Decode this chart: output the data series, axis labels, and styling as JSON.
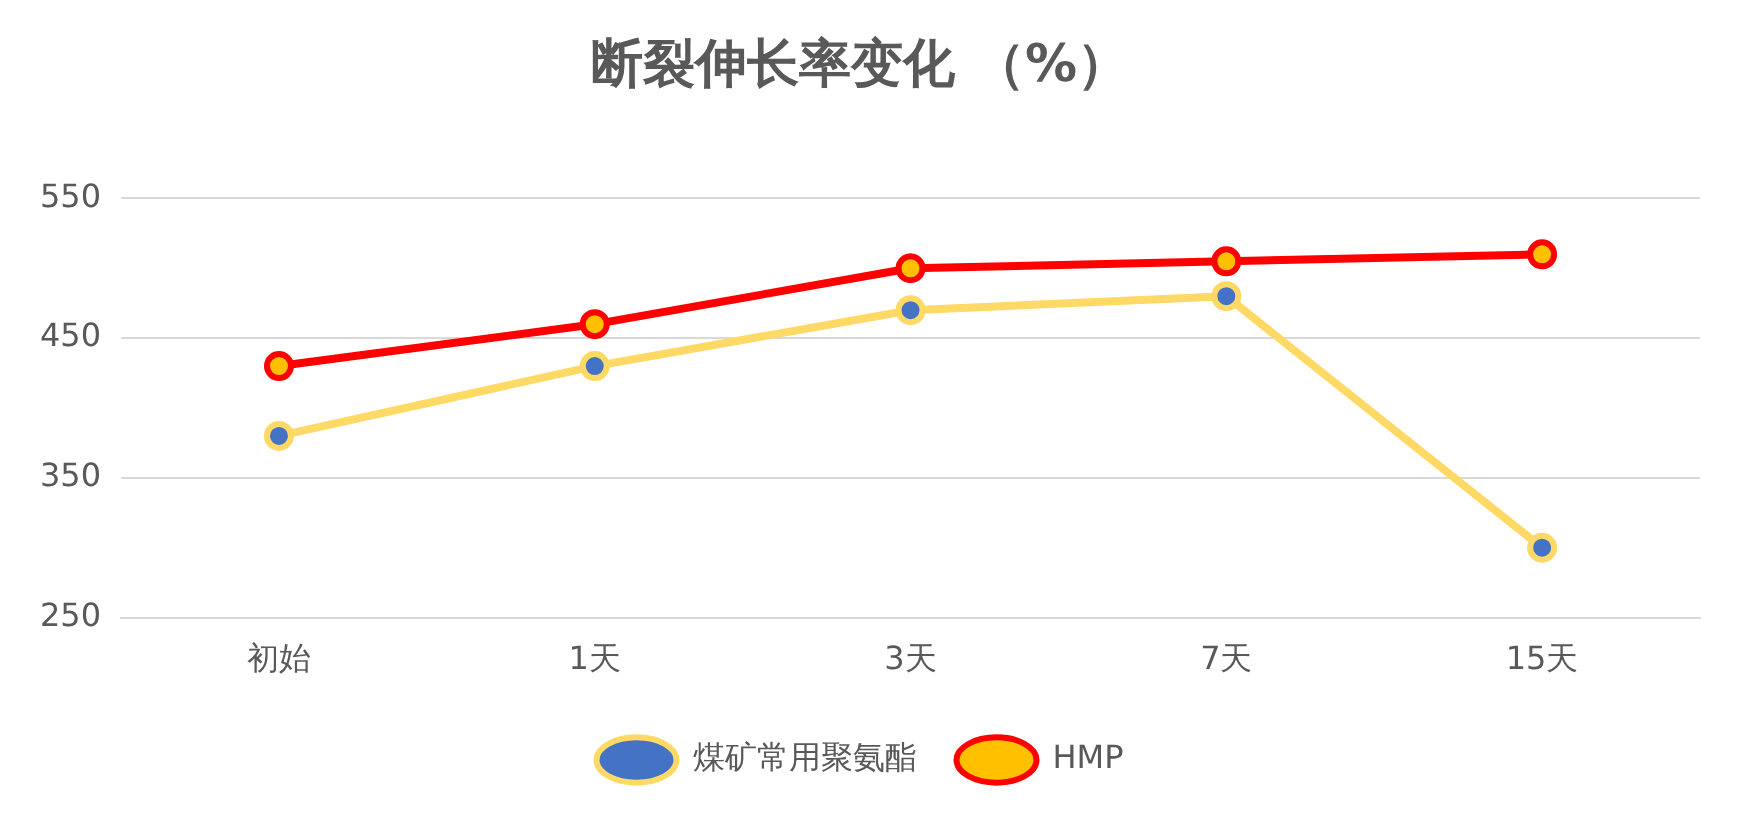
{
  "chart_data": {
    "type": "line",
    "title": "断裂伸长率变化 （%）",
    "categories": [
      "初始",
      "1天",
      "3天",
      "7天",
      "15天"
    ],
    "series": [
      {
        "name": "煤矿常用聚氨酯",
        "color": "#ffd966",
        "values": [
          380,
          430,
          470,
          480,
          300
        ]
      },
      {
        "name": "HMP",
        "color": "#ff0000",
        "values": [
          430,
          460,
          500,
          505,
          510
        ]
      }
    ],
    "ylim": [
      250,
      550
    ],
    "yticks": [
      250,
      350,
      450,
      550
    ],
    "grid": "y",
    "legend": "bottom",
    "marker": "circle",
    "line_style": "solid"
  }
}
